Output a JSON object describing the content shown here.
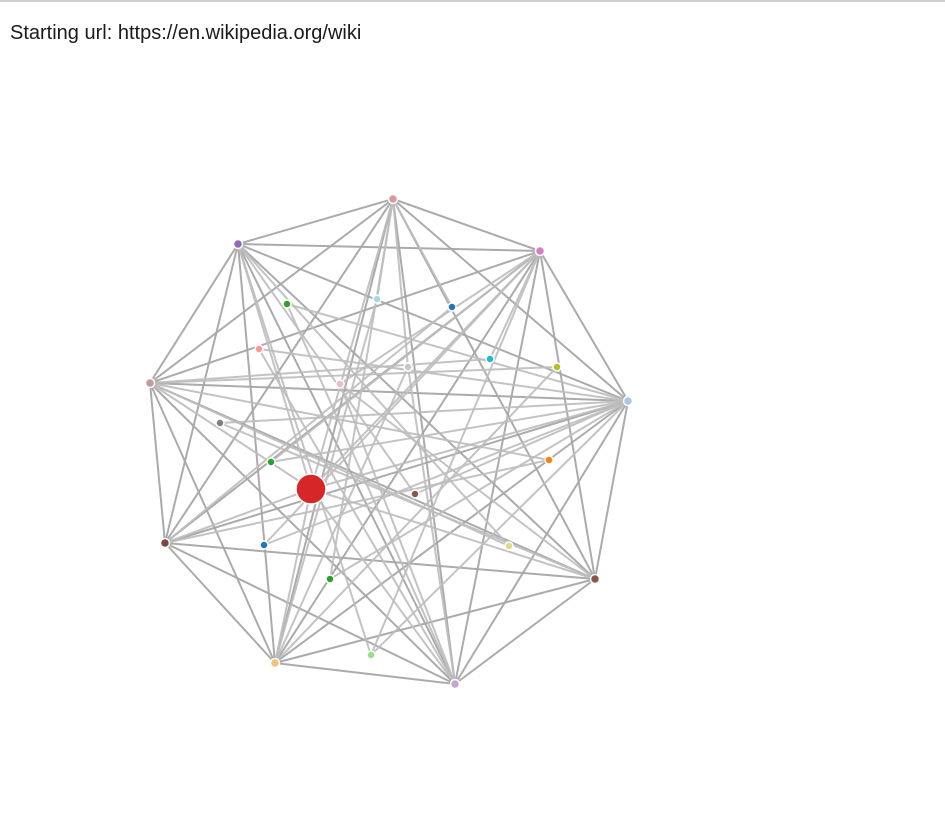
{
  "header": {
    "start_label": "Starting url:",
    "start_url": "https://en.wikipedia.org/wiki"
  },
  "graph": {
    "hub_nodes": [
      {
        "id": "h1",
        "color": "#d89a9a"
      },
      {
        "id": "h2",
        "color": "#d47fc3"
      },
      {
        "id": "h3",
        "color": "#a9c7e6"
      },
      {
        "id": "h4",
        "color": "#8c564b"
      },
      {
        "id": "h5",
        "color": "#c5a3d4"
      },
      {
        "id": "h6",
        "color": "#f0c27b"
      },
      {
        "id": "h7",
        "color": "#7b4a3f"
      },
      {
        "id": "h8",
        "color": "#c49a9a"
      },
      {
        "id": "h9",
        "color": "#9467bd"
      }
    ],
    "inner_nodes": [
      {
        "id": "main",
        "color": "#d62728",
        "size": "large"
      },
      {
        "id": "n1",
        "color": "#2ca02c"
      },
      {
        "id": "n2",
        "color": "#9edae5"
      },
      {
        "id": "n3",
        "color": "#1f77b4"
      },
      {
        "id": "n4",
        "color": "#17becf"
      },
      {
        "id": "n5",
        "color": "#bcbd22"
      },
      {
        "id": "n6",
        "color": "#ff9896"
      },
      {
        "id": "n7",
        "color": "#f7b6d2"
      },
      {
        "id": "n8",
        "color": "#c7c7c7"
      },
      {
        "id": "n9",
        "color": "#7f7f7f"
      },
      {
        "id": "n10",
        "color": "#2ca02c"
      },
      {
        "id": "n11",
        "color": "#8c564b"
      },
      {
        "id": "n12",
        "color": "#ff7f0e"
      },
      {
        "id": "n13",
        "color": "#1f77b4"
      },
      {
        "id": "n14",
        "color": "#dbdb8d"
      },
      {
        "id": "n15",
        "color": "#2ca02c"
      },
      {
        "id": "n16",
        "color": "#98df8a"
      }
    ]
  }
}
